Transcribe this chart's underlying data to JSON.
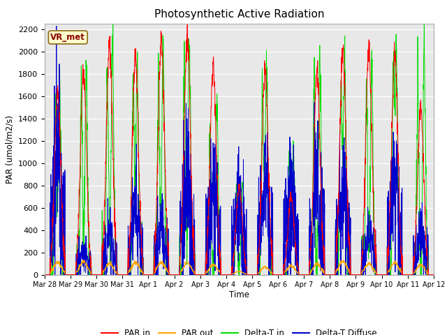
{
  "title": "Photosynthetic Active Radiation",
  "ylabel": "PAR (umol/m2/s)",
  "xlabel": "Time",
  "annotation": "VR_met",
  "ylim": [
    0,
    2250
  ],
  "colors": {
    "PAR_in": "#ff0000",
    "PAR_out": "#ffa500",
    "Delta_T_in": "#00dd00",
    "Delta_T_Diffuse": "#0000cc"
  },
  "legend_labels": [
    "PAR in",
    "PAR out",
    "Delta-T in",
    "Delta-T Diffuse"
  ],
  "fig_facecolor": "#ffffff",
  "plot_bg_color": "#e8e8e8",
  "n_days": 15,
  "tick_labels": [
    "Mar 28",
    "Mar 29",
    "Mar 30",
    "Mar 31",
    "Apr 1",
    "Apr 2",
    "Apr 3",
    "Apr 4",
    "Apr 5",
    "Apr 6",
    "Apr 7",
    "Apr 8",
    "Apr 9",
    "Apr 10",
    "Apr 11",
    "Apr 12"
  ],
  "grid_color": "#ffffff",
  "title_fontsize": 11,
  "yticks": [
    0,
    200,
    400,
    600,
    800,
    1000,
    1200,
    1400,
    1600,
    1800,
    2000,
    2200
  ]
}
